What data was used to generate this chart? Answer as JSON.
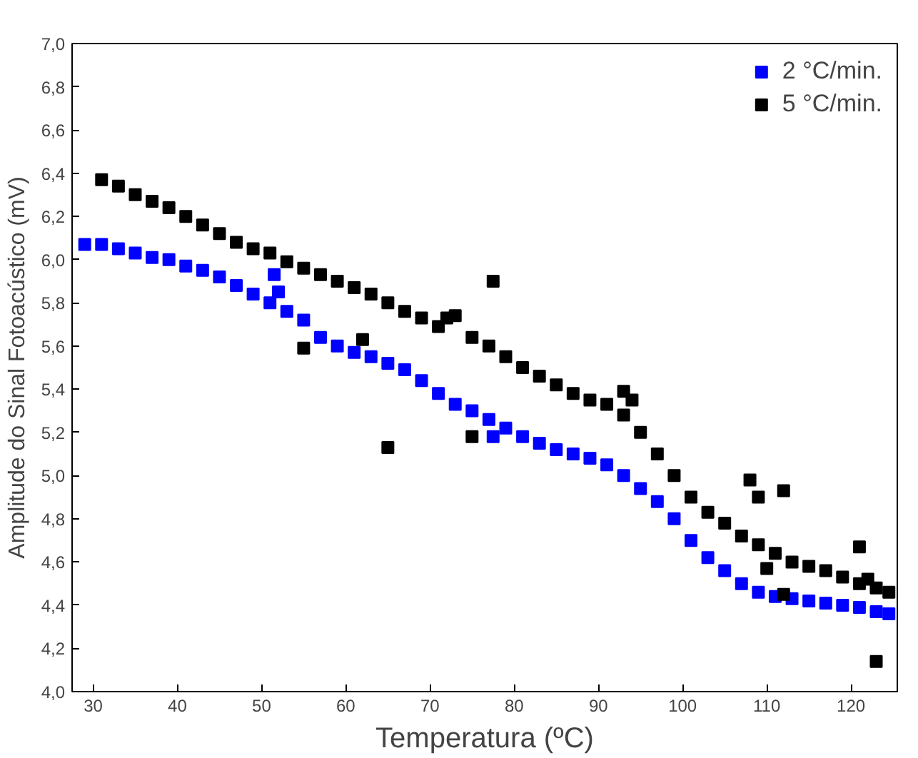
{
  "chart_data": {
    "type": "scatter",
    "xlabel": "Temperatura (ºC)",
    "ylabel": "Amplitude do Sinal Fotoacústico (mV)",
    "xlim": [
      27.5,
      125.5
    ],
    "ylim": [
      4.0,
      7.0
    ],
    "xticks": [
      30,
      40,
      50,
      60,
      70,
      80,
      90,
      100,
      110,
      120
    ],
    "yticks": [
      {
        "value": 4.0,
        "label": "4,0"
      },
      {
        "value": 4.2,
        "label": "4,2"
      },
      {
        "value": 4.4,
        "label": "4,4"
      },
      {
        "value": 4.6,
        "label": "4,6"
      },
      {
        "value": 4.8,
        "label": "4,8"
      },
      {
        "value": 5.0,
        "label": "5,0"
      },
      {
        "value": 5.2,
        "label": "5,2"
      },
      {
        "value": 5.4,
        "label": "5,4"
      },
      {
        "value": 5.6,
        "label": "5,6"
      },
      {
        "value": 5.8,
        "label": "5,8"
      },
      {
        "value": 6.0,
        "label": "6,0"
      },
      {
        "value": 6.2,
        "label": "6,2"
      },
      {
        "value": 6.4,
        "label": "6,4"
      },
      {
        "value": 6.6,
        "label": "6,6"
      },
      {
        "value": 6.8,
        "label": "6,8"
      },
      {
        "value": 7.0,
        "label": "7,0"
      }
    ],
    "marker": "square",
    "legend": "top right",
    "grid": false,
    "series": [
      {
        "name": "2 °C/min.",
        "color": "#0000ff",
        "x": [
          29,
          31,
          33,
          35,
          37,
          39,
          41,
          43,
          45,
          47,
          49,
          51,
          51.5,
          52,
          53,
          55,
          57,
          59,
          61,
          63,
          65,
          67,
          69,
          71,
          73,
          75,
          77,
          77.5,
          79,
          81,
          83,
          85,
          87,
          89,
          91,
          93,
          95,
          97,
          99,
          101,
          103,
          105,
          107,
          109,
          111,
          113,
          115,
          117,
          119,
          121,
          123,
          124.5
        ],
        "values": [
          6.07,
          6.07,
          6.05,
          6.03,
          6.01,
          6.0,
          5.97,
          5.95,
          5.92,
          5.88,
          5.84,
          5.8,
          5.93,
          5.85,
          5.76,
          5.72,
          5.64,
          5.6,
          5.57,
          5.55,
          5.52,
          5.49,
          5.44,
          5.38,
          5.33,
          5.3,
          5.26,
          5.18,
          5.22,
          5.18,
          5.15,
          5.12,
          5.1,
          5.08,
          5.05,
          5.0,
          4.94,
          4.88,
          4.8,
          4.7,
          4.62,
          4.56,
          4.5,
          4.46,
          4.44,
          4.43,
          4.42,
          4.41,
          4.4,
          4.39,
          4.37,
          4.36
        ]
      },
      {
        "name": "5 °C/min.",
        "color": "#000000",
        "x": [
          31,
          33,
          35,
          37,
          39,
          41,
          43,
          45,
          47,
          49,
          51,
          53,
          55,
          55,
          57,
          59,
          61,
          62,
          63,
          65,
          65,
          67,
          69,
          71,
          72,
          73,
          75,
          75,
          77,
          77.5,
          79,
          81,
          83,
          85,
          87,
          89,
          91,
          93,
          93,
          94,
          95,
          97,
          99,
          101,
          103,
          105,
          107,
          108,
          109,
          109,
          110,
          111,
          112,
          112,
          113,
          115,
          117,
          119,
          121,
          121,
          122,
          123,
          123,
          124.5
        ],
        "values": [
          6.37,
          6.34,
          6.3,
          6.27,
          6.24,
          6.2,
          6.16,
          6.12,
          6.08,
          6.05,
          6.03,
          5.99,
          5.59,
          5.96,
          5.93,
          5.9,
          5.87,
          5.63,
          5.84,
          5.13,
          5.8,
          5.76,
          5.73,
          5.69,
          5.73,
          5.74,
          5.18,
          5.64,
          5.6,
          5.9,
          5.55,
          5.5,
          5.46,
          5.42,
          5.38,
          5.35,
          5.33,
          5.39,
          5.28,
          5.35,
          5.2,
          5.1,
          5.0,
          4.9,
          4.83,
          4.78,
          4.72,
          4.98,
          4.9,
          4.68,
          4.57,
          4.64,
          4.93,
          4.45,
          4.6,
          4.58,
          4.56,
          4.53,
          4.67,
          4.5,
          4.52,
          4.14,
          4.48,
          4.46
        ]
      }
    ]
  }
}
